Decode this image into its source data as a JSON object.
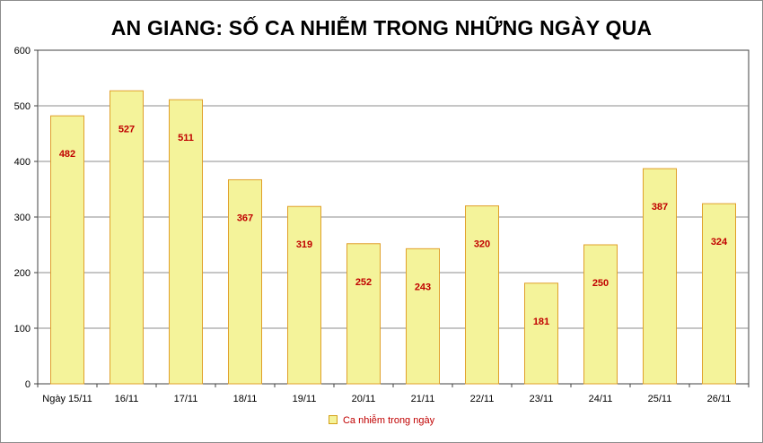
{
  "chart_data": {
    "type": "bar",
    "title": "AN GIANG: SỐ CA NHIỄM TRONG NHỮNG NGÀY QUA",
    "categories": [
      "Ngày 15/11",
      "16/11",
      "17/11",
      "18/11",
      "19/11",
      "20/11",
      "21/11",
      "22/11",
      "23/11",
      "24/11",
      "25/11",
      "26/11"
    ],
    "series": [
      {
        "name": "Ca nhiễm trong ngày",
        "values": [
          482,
          527,
          511,
          367,
          319,
          252,
          243,
          320,
          181,
          250,
          387,
          324
        ]
      }
    ],
    "ylim": [
      0,
      600
    ],
    "yticks": [
      0,
      100,
      200,
      300,
      400,
      500,
      600
    ],
    "grid": true,
    "legend_position": "bottom",
    "colors": {
      "bar_fill": "#f4f39a",
      "bar_stroke": "#e0a02a",
      "data_label": "#c00000",
      "grid": "#8c8c8c",
      "axis": "#404040"
    }
  }
}
